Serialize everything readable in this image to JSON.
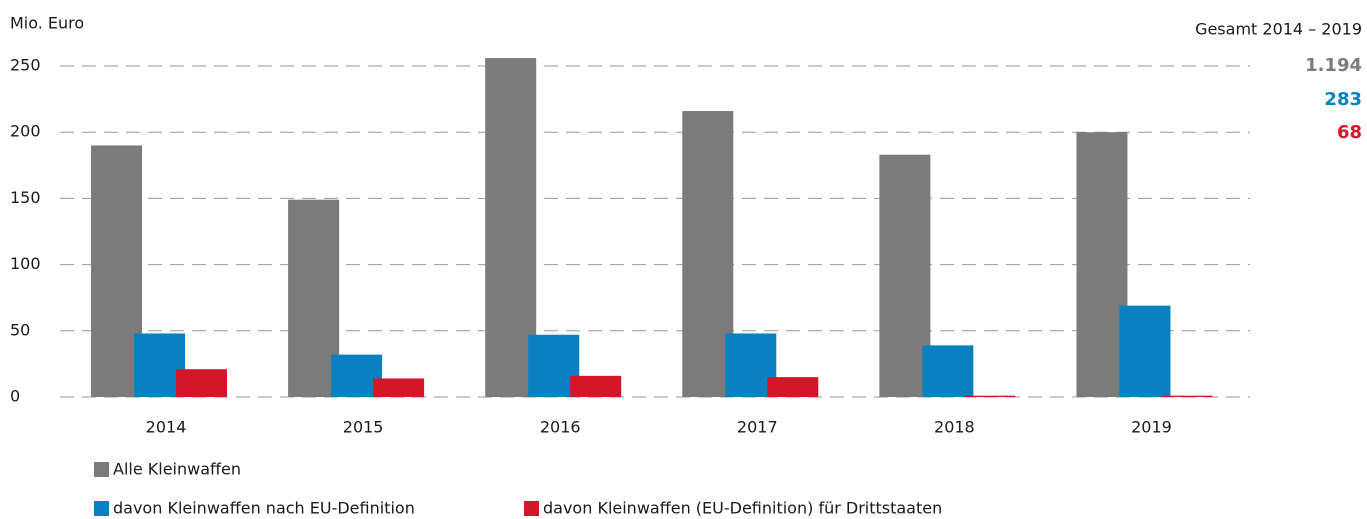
{
  "chart_data": {
    "type": "bar",
    "y_label": "Mio. Euro",
    "totals_title": "Gesamt 2014 – 2019",
    "categories": [
      "2014",
      "2015",
      "2016",
      "2017",
      "2018",
      "2019"
    ],
    "series": [
      {
        "name": "Alle Kleinwaffen",
        "color": "#7b7b7b",
        "values": [
          190,
          149,
          256,
          216,
          183,
          200
        ],
        "total": {
          "value": 1194,
          "label": "1.194"
        }
      },
      {
        "name": "davon Kleinwaffen nach EU-Definition",
        "color": "#0a80c2",
        "values": [
          48,
          32,
          47,
          48,
          39,
          69
        ],
        "total": 283
      },
      {
        "name": "davon Kleinwaffen (EU-Definition) für Drittstaaten",
        "color": "#d3172b",
        "values": [
          21,
          14,
          16,
          15,
          1,
          1
        ],
        "total": 68
      }
    ],
    "ylim": [
      0,
      250
    ],
    "yticks": [
      0,
      50,
      100,
      150,
      200,
      250
    ],
    "grid": true
  }
}
